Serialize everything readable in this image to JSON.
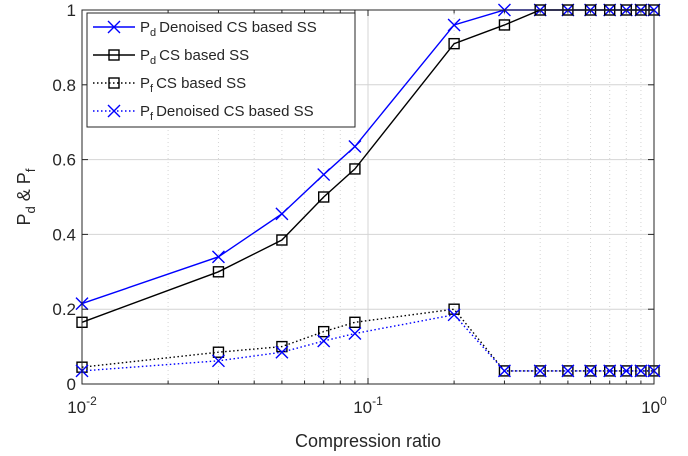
{
  "chart_data": {
    "type": "line",
    "xscale": "log",
    "xlim": [
      0.01,
      1
    ],
    "ylim": [
      0,
      1
    ],
    "xlabel": "Compression ratio",
    "ylabel": {
      "p": "P",
      "d": "d",
      "amp": " & ",
      "f": "f"
    },
    "grid": true,
    "legend_position": "top-left",
    "x": [
      0.01,
      0.03,
      0.05,
      0.07,
      0.09,
      0.2,
      0.3,
      0.4,
      0.5,
      0.6,
      0.7,
      0.8,
      0.9,
      1.0
    ],
    "yticks": [
      "0",
      "0.2",
      "0.4",
      "0.6",
      "0.8",
      "1"
    ],
    "xticks": [
      {
        "value": 0.01,
        "base": "10",
        "exp": "-2"
      },
      {
        "value": 0.1,
        "base": "10",
        "exp": "-1"
      },
      {
        "value": 1,
        "base": "10",
        "exp": "0"
      }
    ],
    "series": [
      {
        "name": "Denoised CS based SS",
        "prefix": "P",
        "sub": "d",
        "color": "#0000ff",
        "marker": "x",
        "dash": "solid",
        "values": [
          0.215,
          0.34,
          0.455,
          0.56,
          0.635,
          0.96,
          1,
          1,
          1,
          1,
          1,
          1,
          1,
          1
        ]
      },
      {
        "name": "CS based SS",
        "prefix": "P",
        "sub": "d",
        "color": "#000000",
        "marker": "square",
        "dash": "solid",
        "values": [
          0.165,
          0.3,
          0.385,
          0.5,
          0.575,
          0.91,
          0.96,
          1,
          1,
          1,
          1,
          1,
          1,
          1
        ]
      },
      {
        "name": "CS based SS",
        "prefix": "P",
        "sub": "f",
        "color": "#000000",
        "marker": "square",
        "dash": "dotted",
        "values": [
          0.045,
          0.085,
          0.1,
          0.14,
          0.165,
          0.2,
          0.035,
          0.035,
          0.035,
          0.035,
          0.035,
          0.035,
          0.035,
          0.035
        ]
      },
      {
        "name": "Denoised CS based SS",
        "prefix": "P",
        "sub": "f",
        "color": "#0000ff",
        "marker": "x",
        "dash": "dotted",
        "values": [
          0.035,
          0.062,
          0.085,
          0.115,
          0.135,
          0.185,
          0.035,
          0.035,
          0.035,
          0.035,
          0.035,
          0.035,
          0.035,
          0.035
        ]
      }
    ]
  }
}
